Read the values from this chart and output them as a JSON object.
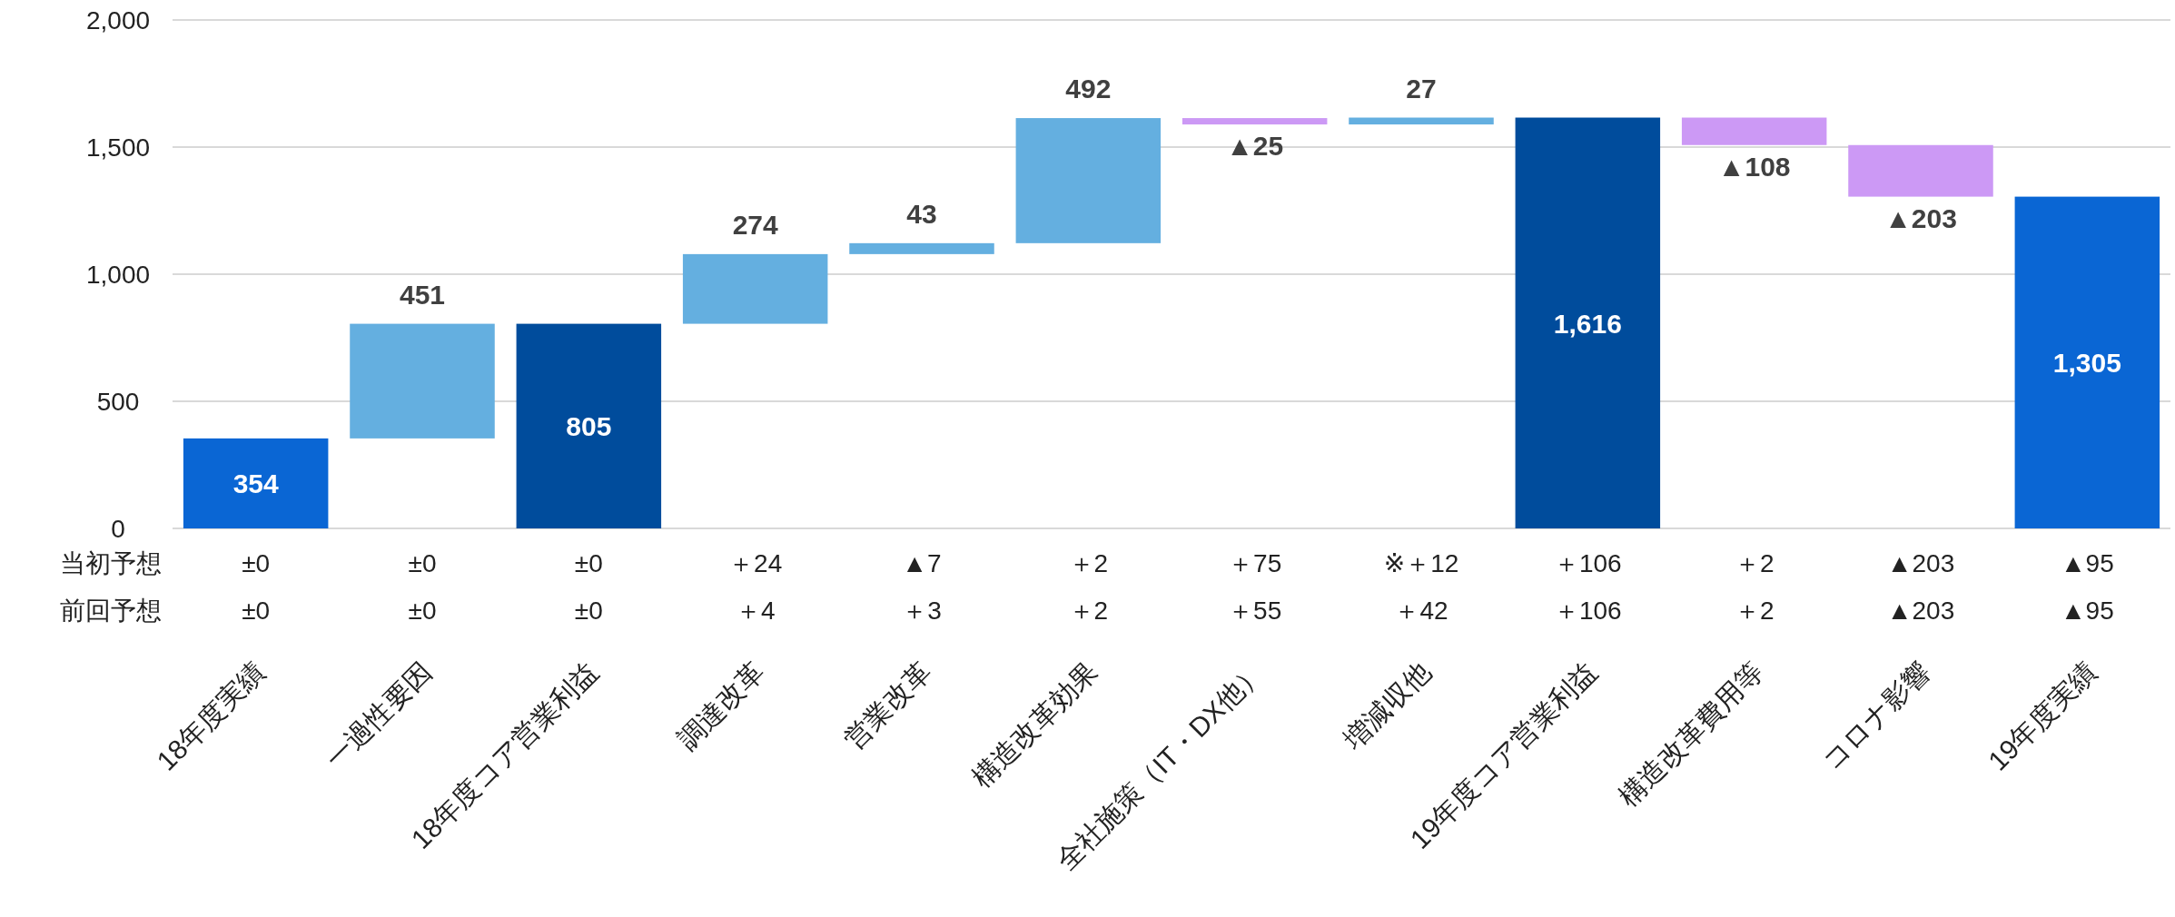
{
  "chart_data": {
    "type": "bar",
    "categories": [
      "18年度実績",
      "一過性要因",
      "18年度コア営業利益",
      "調達改革",
      "営業改革",
      "構造改革効果",
      "全社施策（IT・DX他）",
      "増減収他",
      "19年度コア営業利益",
      "構造改革費用等",
      "コロナ影響",
      "19年度実績"
    ],
    "values": [
      354,
      451,
      805,
      274,
      43,
      492,
      -25,
      27,
      1616,
      -108,
      -203,
      1305
    ],
    "base": [
      0,
      354,
      0,
      805,
      1079,
      1122,
      1614,
      1589,
      0,
      1616,
      1508,
      0
    ],
    "colors": [
      "#0a66d4",
      "#64afe0",
      "#004c9c",
      "#64afe0",
      "#64afe0",
      "#64afe0",
      "#cc99f5",
      "#64afe0",
      "#004c9c",
      "#cc99f5",
      "#cc99f5",
      "#0a66d4"
    ],
    "value_labels": [
      "354",
      "451",
      "805",
      "274",
      "43",
      "492",
      "▲25",
      "27",
      "1,616",
      "▲108",
      "▲203",
      "1,305"
    ],
    "ylim": [
      0,
      2000
    ],
    "yticks": [
      0,
      500,
      {
        "value": 1000,
        "label": "1,000"
      },
      {
        "value": 1500,
        "label": "1,500"
      },
      {
        "value": 2000,
        "label": "2,000"
      }
    ],
    "grid": "y",
    "annotations": [
      "当初予想",
      "±0",
      "±0",
      "±0",
      "＋24",
      "▲7",
      "＋2",
      "＋75",
      "※＋12",
      "＋106",
      "＋2",
      "▲203",
      "▲95",
      "前回予想",
      "±0",
      "±0",
      "±0",
      "＋4",
      "＋3",
      "＋2",
      "＋55",
      "＋42",
      "＋106",
      "＋2",
      "▲203",
      "▲95"
    ]
  }
}
